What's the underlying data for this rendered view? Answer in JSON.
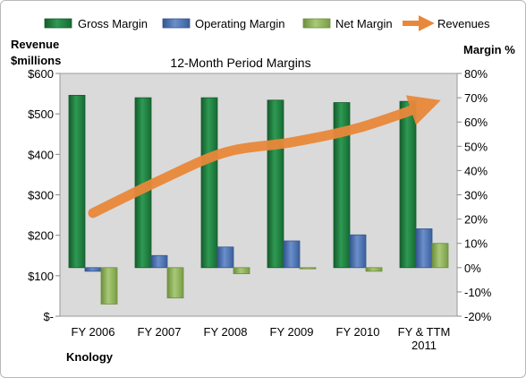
{
  "chart_data": {
    "type": "bar",
    "title": "12-Month Period Margins",
    "company": "Knology",
    "y_left_label_line1": "Revenue",
    "y_left_label_line2": "$millions",
    "y_right_label": "Margin %",
    "categories": [
      [
        "FY 2006"
      ],
      [
        "FY 2007"
      ],
      [
        "FY 2008"
      ],
      [
        "FY 2009"
      ],
      [
        "FY 2010"
      ],
      [
        "FY & TTM",
        "2011"
      ]
    ],
    "series": [
      {
        "name": "Gross Margin",
        "axis": "right",
        "kind": "bar",
        "color": "#1e7b3f",
        "values": [
          71,
          70,
          70,
          69,
          68,
          68.5
        ]
      },
      {
        "name": "Operating Margin",
        "axis": "right",
        "kind": "bar",
        "color": "#4a6fae",
        "values": [
          -1.5,
          5,
          8.5,
          11,
          13.5,
          16
        ]
      },
      {
        "name": "Net Margin",
        "axis": "right",
        "kind": "bar",
        "color": "#8fb15a",
        "values": [
          -15,
          -12.5,
          -2.5,
          -0.5,
          -1.5,
          10
        ]
      },
      {
        "name": "Revenues",
        "axis": "left",
        "kind": "line",
        "color": "#e9883a",
        "values": [
          255,
          335,
          405,
          430,
          465,
          520
        ]
      }
    ],
    "y_left_ticks": [
      "$-",
      "$100",
      "$200",
      "$300",
      "$400",
      "$500",
      "$600"
    ],
    "y_left_range": [
      0,
      600
    ],
    "y_right_ticks": [
      "-20%",
      "-10%",
      "0%",
      "10%",
      "20%",
      "30%",
      "40%",
      "50%",
      "60%",
      "70%",
      "80%"
    ],
    "y_right_range": [
      -20,
      80
    ],
    "legend_position": "top",
    "grid": false,
    "colors": {
      "plot_fill": "#dadada",
      "plot_border": "#9a9a9a"
    }
  }
}
